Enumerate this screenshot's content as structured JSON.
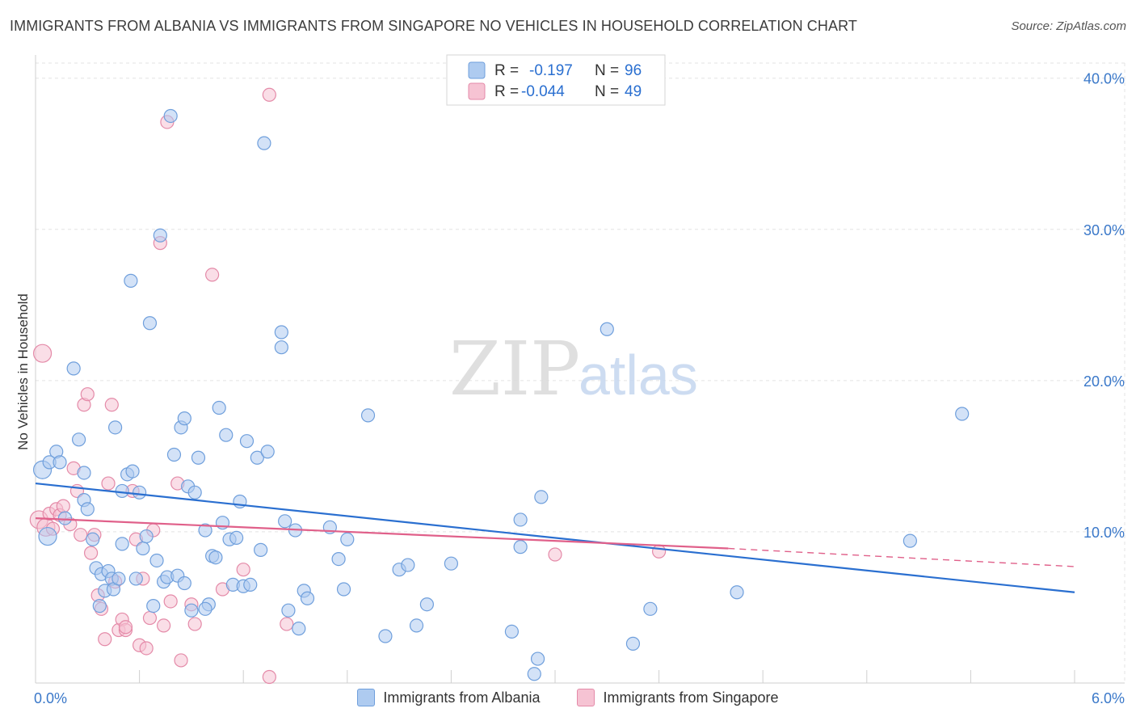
{
  "title": "IMMIGRANTS FROM ALBANIA VS IMMIGRANTS FROM SINGAPORE NO VEHICLES IN HOUSEHOLD CORRELATION CHART",
  "source": "Source: ZipAtlas.com",
  "watermark": {
    "zip": "ZIP",
    "atlas": "atlas"
  },
  "colors": {
    "albania_fill": "#aecbf0",
    "albania_stroke": "#6f9fdc",
    "albania_line": "#2a6fd0",
    "singapore_fill": "#f6c3d3",
    "singapore_stroke": "#e48aa8",
    "singapore_line": "#e0608a",
    "axis_text": "#3a78c9"
  },
  "legend": {
    "albania": {
      "r_label": "R =",
      "r_value": "-0.197",
      "n_label": "N =",
      "n_value": "96"
    },
    "singapore": {
      "r_label": "R =",
      "r_value": "-0.044",
      "n_label": "N =",
      "n_value": "49"
    }
  },
  "chart_data": {
    "type": "scatter",
    "title": "IMMIGRANTS FROM ALBANIA VS IMMIGRANTS FROM SINGAPORE NO VEHICLES IN HOUSEHOLD CORRELATION CHART",
    "xlabel": "",
    "ylabel": "No Vehicles in Household",
    "xlim": [
      0,
      6.0
    ],
    "ylim": [
      0,
      41.0
    ],
    "x_tick_labels": [
      "0.0%",
      "6.0%"
    ],
    "y_ticks": [
      10,
      20,
      30,
      40
    ],
    "y_tick_labels": [
      "10.0%",
      "20.0%",
      "30.0%",
      "40.0%"
    ],
    "grid": true,
    "series": [
      {
        "name": "Immigrants from Albania",
        "key": "albania",
        "trend": {
          "x0": 0,
          "y0": 13.2,
          "x1": 6.0,
          "y1": 6.0
        },
        "points": [
          [
            0.04,
            14.1
          ],
          [
            0.07,
            9.7
          ],
          [
            0.12,
            15.3
          ],
          [
            0.08,
            14.6
          ],
          [
            0.14,
            14.6
          ],
          [
            0.17,
            10.9
          ],
          [
            0.22,
            20.8
          ],
          [
            0.25,
            16.1
          ],
          [
            0.28,
            13.9
          ],
          [
            0.28,
            12.1
          ],
          [
            0.3,
            11.5
          ],
          [
            0.33,
            9.5
          ],
          [
            0.35,
            7.6
          ],
          [
            0.37,
            5.1
          ],
          [
            0.38,
            7.2
          ],
          [
            0.4,
            6.1
          ],
          [
            0.42,
            7.4
          ],
          [
            0.44,
            6.9
          ],
          [
            0.45,
            6.2
          ],
          [
            0.46,
            16.9
          ],
          [
            0.48,
            6.9
          ],
          [
            0.5,
            12.7
          ],
          [
            0.53,
            13.8
          ],
          [
            0.55,
            26.6
          ],
          [
            0.56,
            14.0
          ],
          [
            0.58,
            6.9
          ],
          [
            0.6,
            12.6
          ],
          [
            0.62,
            8.9
          ],
          [
            0.64,
            9.7
          ],
          [
            0.66,
            23.8
          ],
          [
            0.68,
            5.1
          ],
          [
            0.7,
            8.1
          ],
          [
            0.72,
            29.6
          ],
          [
            0.74,
            6.7
          ],
          [
            0.76,
            7.0
          ],
          [
            0.78,
            37.5
          ],
          [
            0.8,
            15.1
          ],
          [
            0.82,
            7.1
          ],
          [
            0.84,
            16.9
          ],
          [
            0.86,
            17.5
          ],
          [
            0.88,
            13.0
          ],
          [
            0.9,
            4.8
          ],
          [
            0.92,
            12.6
          ],
          [
            0.94,
            14.9
          ],
          [
            0.98,
            10.1
          ],
          [
            1.0,
            5.2
          ],
          [
            1.02,
            8.4
          ],
          [
            1.04,
            8.3
          ],
          [
            1.06,
            18.2
          ],
          [
            1.08,
            10.6
          ],
          [
            1.1,
            16.4
          ],
          [
            1.12,
            9.5
          ],
          [
            1.14,
            6.5
          ],
          [
            1.16,
            9.6
          ],
          [
            1.18,
            12.0
          ],
          [
            1.2,
            6.4
          ],
          [
            1.22,
            16.0
          ],
          [
            1.24,
            6.5
          ],
          [
            1.28,
            14.9
          ],
          [
            1.3,
            8.8
          ],
          [
            1.32,
            35.7
          ],
          [
            1.34,
            15.3
          ],
          [
            1.42,
            23.2
          ],
          [
            1.42,
            22.2
          ],
          [
            1.44,
            10.7
          ],
          [
            1.46,
            4.8
          ],
          [
            1.5,
            10.1
          ],
          [
            1.52,
            3.6
          ],
          [
            1.55,
            6.1
          ],
          [
            1.57,
            5.6
          ],
          [
            1.7,
            10.3
          ],
          [
            1.75,
            8.2
          ],
          [
            1.78,
            6.2
          ],
          [
            1.8,
            9.5
          ],
          [
            1.92,
            17.7
          ],
          [
            2.02,
            3.1
          ],
          [
            2.1,
            7.5
          ],
          [
            2.15,
            7.8
          ],
          [
            2.2,
            3.8
          ],
          [
            2.26,
            5.2
          ],
          [
            2.4,
            7.9
          ],
          [
            2.75,
            3.4
          ],
          [
            2.8,
            10.8
          ],
          [
            2.9,
            1.6
          ],
          [
            2.92,
            12.3
          ],
          [
            3.3,
            23.4
          ],
          [
            3.45,
            2.6
          ],
          [
            3.55,
            4.9
          ],
          [
            4.05,
            6.0
          ],
          [
            5.05,
            9.4
          ],
          [
            5.35,
            17.8
          ],
          [
            2.88,
            0.6
          ],
          [
            0.86,
            6.6
          ],
          [
            0.5,
            9.2
          ],
          [
            0.98,
            4.9
          ],
          [
            2.8,
            9.0
          ]
        ]
      },
      {
        "name": "Immigrants from Singapore",
        "key": "singapore",
        "trend": {
          "x0": 0,
          "y0": 10.9,
          "x1": 4.0,
          "y1": 8.9,
          "dash_x1": 6.0,
          "dash_y1": 7.7
        },
        "points": [
          [
            0.02,
            10.8
          ],
          [
            0.04,
            21.8
          ],
          [
            0.06,
            10.3
          ],
          [
            0.08,
            11.2
          ],
          [
            0.1,
            10.2
          ],
          [
            0.12,
            11.5
          ],
          [
            0.14,
            11.1
          ],
          [
            0.16,
            11.7
          ],
          [
            0.2,
            10.5
          ],
          [
            0.22,
            14.2
          ],
          [
            0.24,
            12.7
          ],
          [
            0.26,
            9.8
          ],
          [
            0.28,
            18.4
          ],
          [
            0.3,
            19.1
          ],
          [
            0.32,
            8.6
          ],
          [
            0.34,
            9.8
          ],
          [
            0.36,
            5.8
          ],
          [
            0.38,
            4.9
          ],
          [
            0.4,
            2.9
          ],
          [
            0.42,
            13.2
          ],
          [
            0.44,
            18.4
          ],
          [
            0.46,
            6.7
          ],
          [
            0.48,
            3.5
          ],
          [
            0.5,
            4.2
          ],
          [
            0.52,
            3.5
          ],
          [
            0.56,
            12.7
          ],
          [
            0.58,
            9.5
          ],
          [
            0.6,
            2.5
          ],
          [
            0.62,
            6.9
          ],
          [
            0.64,
            2.3
          ],
          [
            0.66,
            4.3
          ],
          [
            0.68,
            10.1
          ],
          [
            0.72,
            29.1
          ],
          [
            0.74,
            3.8
          ],
          [
            0.76,
            37.1
          ],
          [
            0.78,
            5.4
          ],
          [
            0.82,
            13.2
          ],
          [
            0.84,
            1.5
          ],
          [
            0.9,
            5.2
          ],
          [
            0.92,
            3.9
          ],
          [
            1.02,
            27.0
          ],
          [
            1.08,
            6.2
          ],
          [
            1.2,
            7.5
          ],
          [
            1.35,
            0.4
          ],
          [
            1.45,
            3.9
          ],
          [
            1.35,
            38.9
          ],
          [
            3.0,
            8.5
          ],
          [
            3.6,
            8.7
          ],
          [
            0.52,
            3.7
          ]
        ]
      }
    ]
  },
  "bottom_legend": {
    "albania_label": "Immigrants from Albania",
    "singapore_label": "Immigrants from Singapore"
  }
}
